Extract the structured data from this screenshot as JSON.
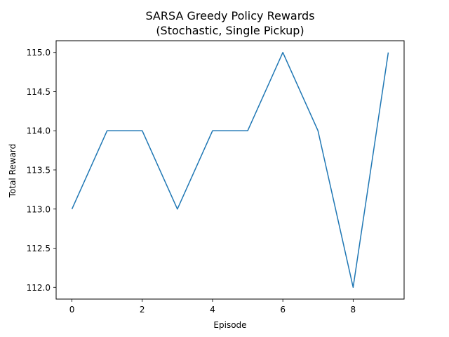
{
  "chart_data": {
    "type": "line",
    "title": "SARSA Greedy Policy Rewards",
    "subtitle": "(Stochastic, Single Pickup)",
    "xlabel": "Episode",
    "ylabel": "Total Reward",
    "x": [
      0,
      1,
      2,
      3,
      4,
      5,
      6,
      7,
      8,
      9
    ],
    "series": [
      {
        "values": [
          113.0,
          114.0,
          114.0,
          113.0,
          114.0,
          114.0,
          115.0,
          114.0,
          112.0,
          115.0
        ],
        "color": "#1f77b4"
      }
    ],
    "xlim": [
      -0.45,
      9.45
    ],
    "ylim": [
      111.85,
      115.15
    ],
    "xticks": [
      0,
      2,
      4,
      6,
      8
    ],
    "xtick_labels": [
      "0",
      "2",
      "4",
      "6",
      "8"
    ],
    "yticks": [
      112.0,
      112.5,
      113.0,
      113.5,
      114.0,
      114.5,
      115.0
    ],
    "ytick_labels": [
      "112.0",
      "112.5",
      "113.0",
      "113.5",
      "114.0",
      "114.5",
      "115.0"
    ],
    "grid": false,
    "legend": "none"
  }
}
